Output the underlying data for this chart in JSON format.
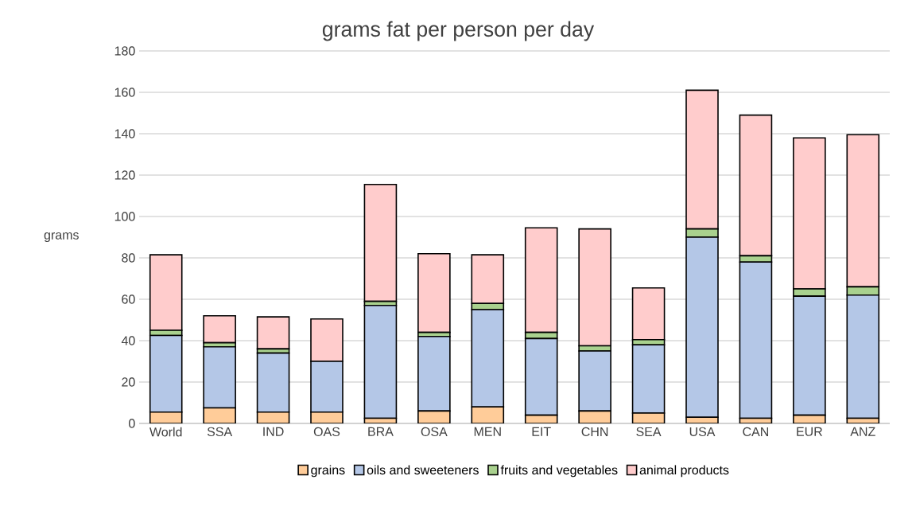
{
  "chart_data": {
    "type": "bar",
    "stacked": true,
    "title": "grams fat per person per day",
    "ylabel": "grams",
    "categories": [
      "World",
      "SSA",
      "IND",
      "OAS",
      "BRA",
      "OSA",
      "MEN",
      "EIT",
      "CHN",
      "SEA",
      "USA",
      "CAN",
      "EUR",
      "ANZ"
    ],
    "series": [
      {
        "name": "grains",
        "color": "#ffcc99",
        "values": [
          5.5,
          7.5,
          5.5,
          5.5,
          2.5,
          6,
          8,
          4,
          6,
          5,
          3,
          2.5,
          4,
          2.5
        ]
      },
      {
        "name": "oils and sweeteners",
        "color": "#b4c7e7",
        "values": [
          37,
          29.5,
          28.5,
          24.5,
          54.5,
          36,
          47,
          37,
          29,
          33,
          87,
          75.5,
          57.5,
          59.5
        ]
      },
      {
        "name": "fruits and vegetables",
        "color": "#a9d18e",
        "values": [
          2.5,
          2,
          2,
          null,
          2,
          2,
          3,
          3,
          2.5,
          2.5,
          4,
          3,
          3.5,
          4
        ]
      },
      {
        "name": "animal products",
        "color": "#ffcccc",
        "values": [
          36.5,
          13,
          15.5,
          20.5,
          56.5,
          38,
          23.5,
          50.5,
          56.5,
          25,
          67,
          68,
          73,
          73.5
        ]
      }
    ],
    "ylim": [
      0,
      180
    ],
    "yticks": [
      0,
      20,
      40,
      60,
      80,
      100,
      120,
      140,
      160,
      180
    ],
    "grid": "y",
    "legend": "bottom"
  }
}
